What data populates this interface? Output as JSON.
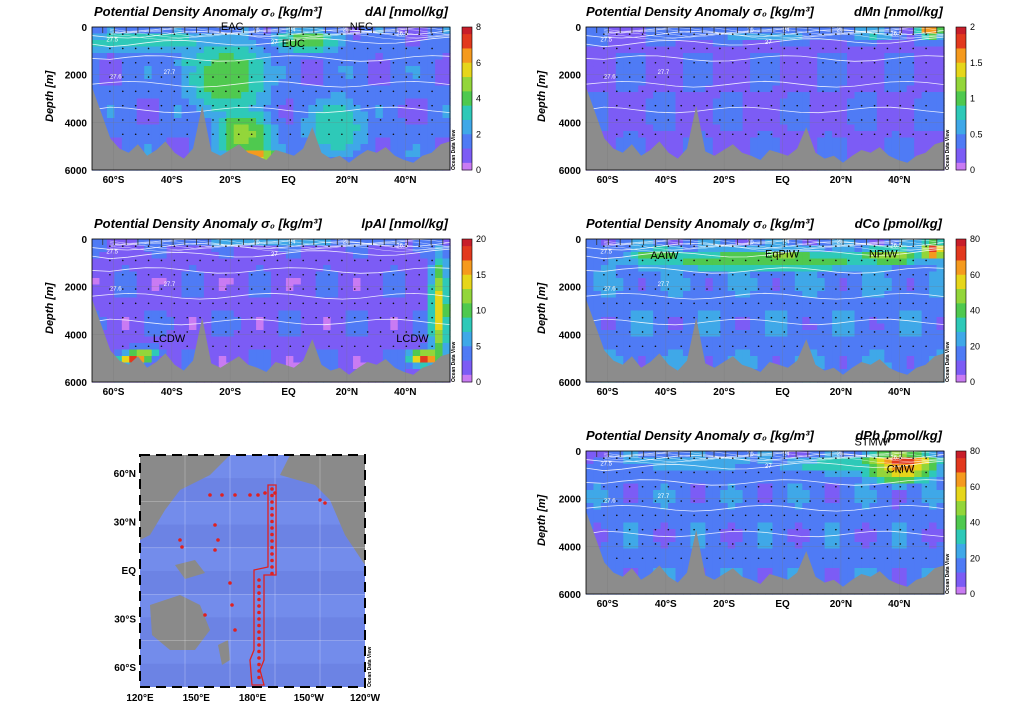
{
  "figure": {
    "iso_labels": [
      "27.5",
      "27.6",
      "27.7",
      "27",
      "26",
      "24",
      "25",
      "26.5"
    ],
    "odv_mark": "Ocean Data View",
    "map_odv_mark": "Ocean Data View"
  },
  "colors": {
    "ramp": [
      "#c97bf3",
      "#7c5cf5",
      "#4f7bf5",
      "#3fa8e8",
      "#2ec9b8",
      "#4fc94f",
      "#93d63a",
      "#e6d61a",
      "#f59a1e",
      "#e2391e",
      "#c81e2a"
    ],
    "topo": "#8c8c8c",
    "track": "#e02020",
    "station": "#e02020"
  },
  "chart_data": [
    {
      "type": "heatmap",
      "id": "dAl",
      "title": "Potential Density Anomaly σ₀ [kg/m³]",
      "variable": "dAl [nmol/kg]",
      "ylabel": "Depth [m]",
      "x_ticks": [
        "60°S",
        "40°S",
        "20°S",
        "EQ",
        "20°N",
        "40°N"
      ],
      "y_ticks": [
        "0",
        "2000",
        "4000",
        "6000"
      ],
      "ylim": [
        6000,
        0
      ],
      "colorbar": {
        "min": 0,
        "max": 8,
        "ticks": [
          "8",
          "6",
          "4",
          "2",
          "0"
        ]
      },
      "annotations": [
        "EAC",
        "EUC",
        "NEC"
      ]
    },
    {
      "type": "heatmap",
      "id": "dMn",
      "title": "Potential Density Anomaly σ₀ [kg/m³]",
      "variable": "dMn [nmol/kg]",
      "ylabel": "Depth [m]",
      "x_ticks": [
        "60°S",
        "40°S",
        "20°S",
        "EQ",
        "20°N",
        "40°N"
      ],
      "y_ticks": [
        "0",
        "2000",
        "4000",
        "6000"
      ],
      "ylim": [
        6000,
        0
      ],
      "colorbar": {
        "min": 0,
        "max": 2,
        "ticks": [
          "2",
          "1.5",
          "1",
          "0.5",
          "0"
        ]
      },
      "annotations": []
    },
    {
      "type": "heatmap",
      "id": "lpAl",
      "title": "Potential Density Anomaly σ₀ [kg/m³]",
      "variable": "lpAl [nmol/kg]",
      "ylabel": "Depth [m]",
      "x_ticks": [
        "60°S",
        "40°S",
        "20°S",
        "EQ",
        "20°N",
        "40°N"
      ],
      "y_ticks": [
        "0",
        "2000",
        "4000",
        "6000"
      ],
      "ylim": [
        6000,
        0
      ],
      "colorbar": {
        "min": 0,
        "max": 20,
        "ticks": [
          "20",
          "15",
          "10",
          "5",
          "0"
        ]
      },
      "annotations": [
        "LCDW",
        "LCDW"
      ]
    },
    {
      "type": "heatmap",
      "id": "dCo",
      "title": "Potential Density Anomaly σ₀ [kg/m³]",
      "variable": "dCo [pmol/kg]",
      "ylabel": "Depth [m]",
      "x_ticks": [
        "60°S",
        "40°S",
        "20°S",
        "EQ",
        "20°N",
        "40°N"
      ],
      "y_ticks": [
        "0",
        "2000",
        "4000",
        "6000"
      ],
      "ylim": [
        6000,
        0
      ],
      "colorbar": {
        "min": 0,
        "max": 80,
        "ticks": [
          "80",
          "60",
          "40",
          "20",
          "0"
        ]
      },
      "annotations": [
        "AAIW",
        "EqPIW",
        "NPIW"
      ]
    },
    {
      "type": "heatmap",
      "id": "dPb",
      "title": "Potential Density Anomaly σ₀ [kg/m³]",
      "variable": "dPb [pmol/kg]",
      "ylabel": "Depth [m]",
      "x_ticks": [
        "60°S",
        "40°S",
        "20°S",
        "EQ",
        "20°N",
        "40°N"
      ],
      "y_ticks": [
        "0",
        "2000",
        "4000",
        "6000"
      ],
      "ylim": [
        6000,
        0
      ],
      "colorbar": {
        "min": 0,
        "max": 80,
        "ticks": [
          "80",
          "60",
          "40",
          "20",
          "0"
        ]
      },
      "annotations": [
        "STMW",
        "CMW"
      ]
    }
  ],
  "map": {
    "x_ticks": [
      "120°E",
      "150°E",
      "180°E",
      "150°W",
      "120°W"
    ],
    "y_ticks": [
      "60°N",
      "30°N",
      "EQ",
      "30°S",
      "60°S"
    ]
  }
}
